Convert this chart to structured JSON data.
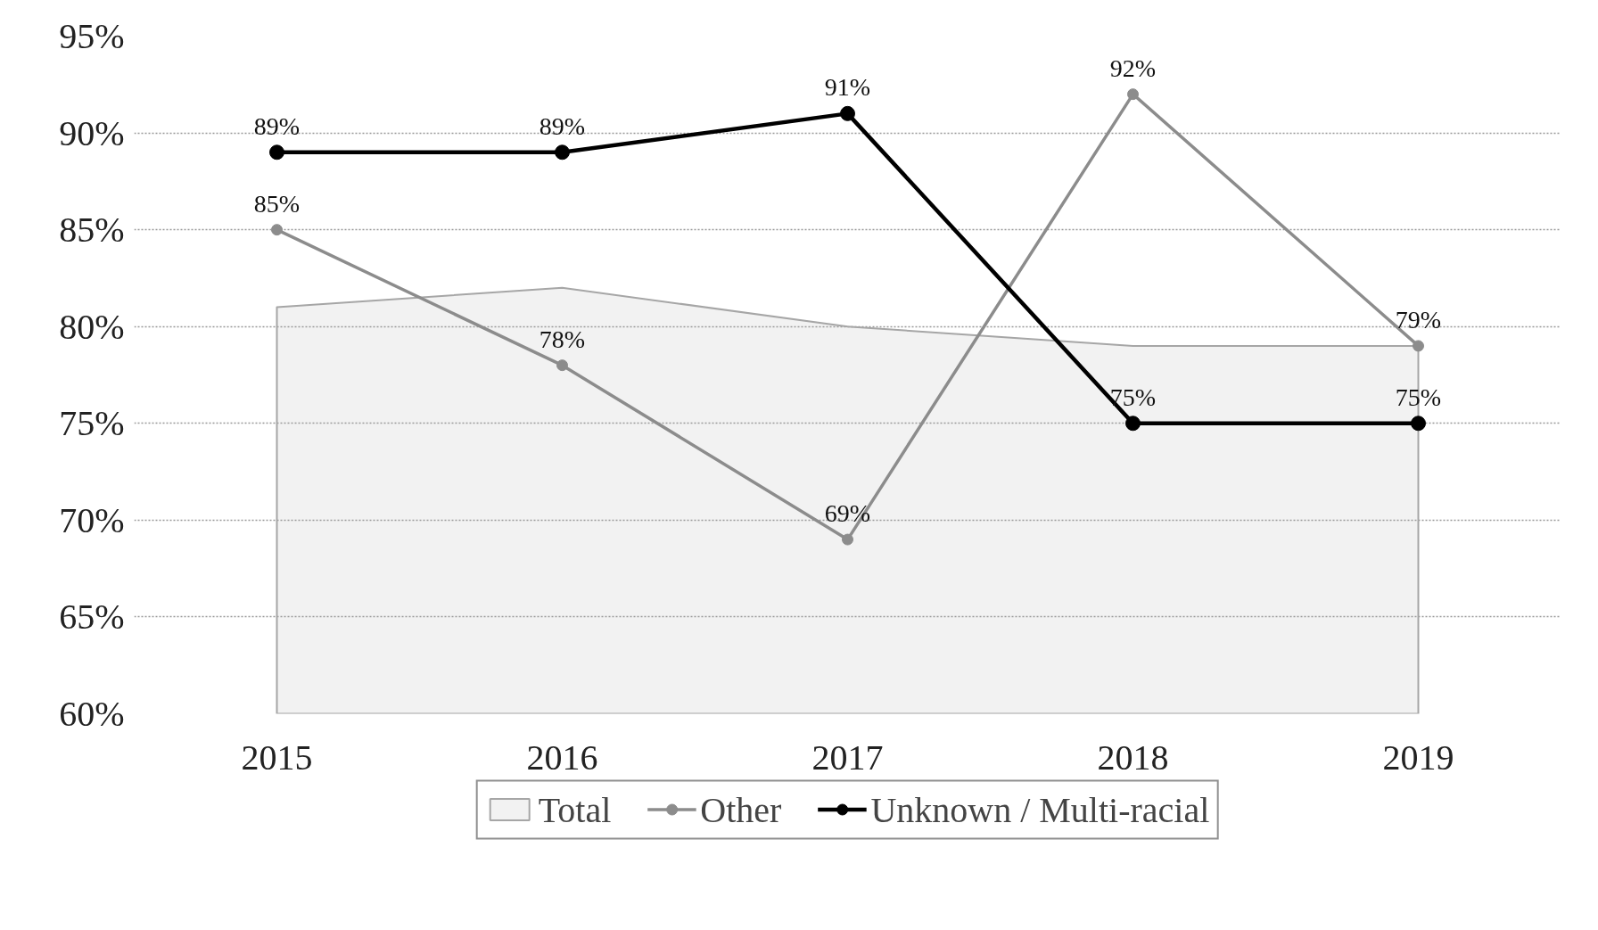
{
  "chart_data": {
    "type": "line",
    "categories": [
      "2015",
      "2016",
      "2017",
      "2018",
      "2019"
    ],
    "series": [
      {
        "name": "Total",
        "type": "area",
        "color": "#a6a6a6",
        "values": [
          81,
          82,
          80,
          79,
          79
        ],
        "marker": "none"
      },
      {
        "name": "Other",
        "color": "#8c8c8c",
        "values": [
          85,
          78,
          69,
          92,
          79
        ],
        "marker": "circle",
        "value_labels": [
          "85%",
          "78%",
          "69%",
          "92%",
          "79%"
        ]
      },
      {
        "name": "Unknown / Multi-racial",
        "color": "#000000",
        "values": [
          89,
          89,
          91,
          75,
          75
        ],
        "marker": "circle",
        "value_labels": [
          "89%",
          "89%",
          "91%",
          "75%",
          "75%"
        ]
      }
    ],
    "ylim": [
      60,
      95
    ],
    "yticks": [
      {
        "value": 60,
        "label": "60%"
      },
      {
        "value": 65,
        "label": "65%"
      },
      {
        "value": 70,
        "label": "70%"
      },
      {
        "value": 75,
        "label": "75%"
      },
      {
        "value": 80,
        "label": "80%"
      },
      {
        "value": 85,
        "label": "85%"
      },
      {
        "value": 90,
        "label": "90%"
      },
      {
        "value": 95,
        "label": "95%"
      }
    ],
    "grid": "y",
    "legend": "bottom",
    "line_style": "solid"
  }
}
